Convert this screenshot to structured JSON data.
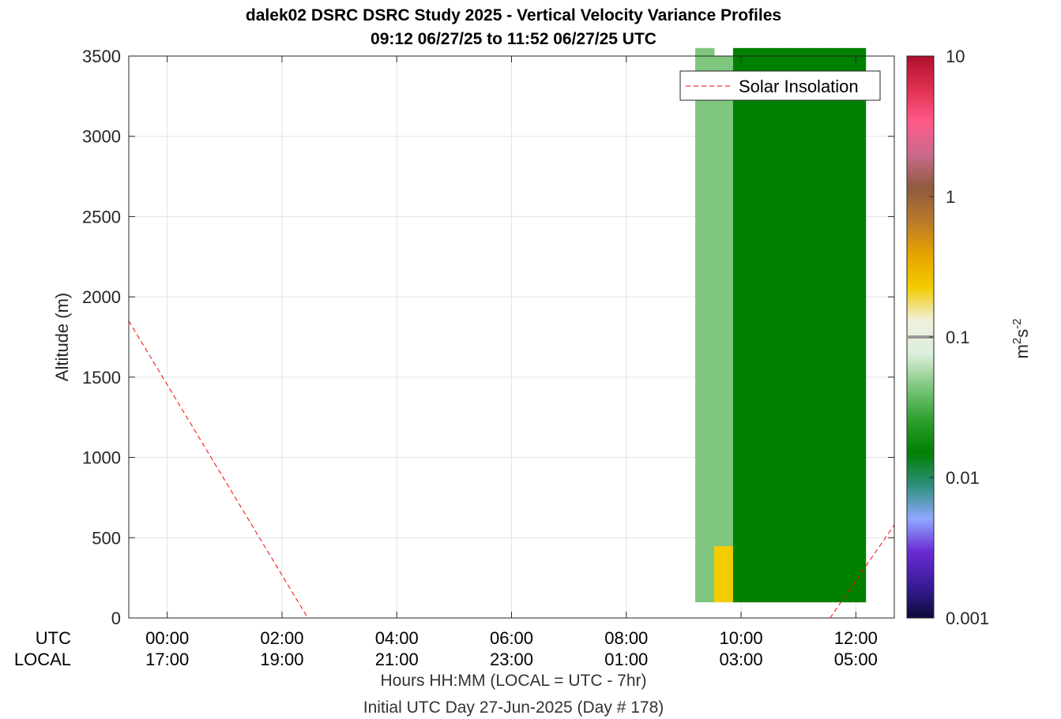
{
  "title": {
    "line1": "dalek02 DSRC DSRC Study 2025 - Vertical Velocity Variance Profiles",
    "line2": "09:12 06/27/25 to 11:52 06/27/25  UTC"
  },
  "xlabel": {
    "line1": "Hours HH:MM  (LOCAL = UTC - 7hr)",
    "line2": "Initial UTC Day 27-Jun-2025 (Day # 178)"
  },
  "row_labels": {
    "utc": "UTC",
    "local": "LOCAL"
  },
  "colorbar": {
    "label": "m2s-2",
    "ticks": [
      "10",
      "1",
      "0.1",
      "0.01",
      "0.001"
    ],
    "range": [
      0.001,
      10
    ],
    "scale": "log",
    "stops": [
      "#0b0b3a",
      "#3a1c9a",
      "#6a2bd4",
      "#8fa8ff",
      "#2f8f7e",
      "#008000",
      "#2ea02e",
      "#7fc77f",
      "#dcefdc",
      "#f0f0dc",
      "#f2cc00",
      "#e6a300",
      "#b97a2a",
      "#8f5a3e",
      "#c86a8a",
      "#ff5a8a",
      "#e03050",
      "#b01030"
    ]
  },
  "chart_data": {
    "type": "heatmap",
    "xlabel": "Hours HH:MM  (LOCAL = UTC - 7hr)",
    "ylabel": "Altitude (m)",
    "xlim_hours_utc": [
      -0.67,
      12.67
    ],
    "ylim": [
      0,
      3500
    ],
    "yticks": [
      0,
      500,
      1000,
      1500,
      2000,
      2500,
      3000,
      3500
    ],
    "xticks": [
      {
        "hour": 0,
        "utc": "00:00",
        "local": "17:00"
      },
      {
        "hour": 2,
        "utc": "02:00",
        "local": "19:00"
      },
      {
        "hour": 4,
        "utc": "04:00",
        "local": "21:00"
      },
      {
        "hour": 6,
        "utc": "06:00",
        "local": "23:00"
      },
      {
        "hour": 8,
        "utc": "08:00",
        "local": "01:00"
      },
      {
        "hour": 10,
        "utc": "10:00",
        "local": "03:00"
      },
      {
        "hour": 12,
        "utc": "12:00",
        "local": "05:00"
      }
    ],
    "grid": true,
    "legend": {
      "location": "top-right",
      "entries": [
        "Solar Insolation"
      ]
    },
    "solar_insolation_line": {
      "color": "#ff0000",
      "style": "dashed",
      "x_hours_utc": [
        -0.67,
        2.45,
        11.55,
        12.67
      ],
      "y_altitude": [
        1850,
        0,
        0,
        580
      ]
    },
    "heatmap": {
      "x_start_hours_utc": 9.2,
      "column_width_hours": 0.33,
      "y_start": 100,
      "row_height": 50,
      "columns": [
        "LLLLLLLLLLLLLLLLLLLLLLLLLLLLLLLLLLLLLLLLLLLLLLLLLLLLLLLLLLLLLLLLLLLLL",
        "YYYYYYYLLLLLLLLLLLLLLLLLLLLLLLLLLLLLLLLLLLLLLLLLLLLLLLLLLLLLLLLLLLLL",
        "GGGGGGGGGGGGGGGGGGGGGGGGGGGGGGGGGGGGGGGGGGGGGGGGGGGGGGGGGGGGGGGGGGGGG",
        "GGGGGGGGGGGGGGGGGGGGGGGGGGGGGGGGGGGGGGGGGGGGGGGGGGGGGGGGGGGGGGGGGGGGG",
        "GGGGGGGGGGGGGGGGGGGGGGGGGGGGGGGGGGGGGGGGGGGGGGGGGGGGGGGGGGGGGGGGGGGGG",
        "GGGGGGGGGGGGGGGGGGGGGGGGGGGGGGGGGGGGGGGGGGGGGGGGGGGGGGGGGGGGGGGGGGGGG",
        "GGGGGGGGGGGGGGGGGGGGGGGGGGGGGGGGGGGGGGGGGGGGGGGGGGGGGGGGGGGGGGGGGGGGG",
        "GGGGGGGGGGGGGGGGGGGGGGGGGGGGGGGGGGGGGGGGGGGGGGGGGGGGGGGGGGGGGGGGGGGGG",
        "GGGGGGGGGGGGGGGGGGGGGGGGGGGGGGGGGGGGGGGGGGGGGGGGGGGGGGGGGGGGGGGGGGGGG"
      ]
    }
  }
}
